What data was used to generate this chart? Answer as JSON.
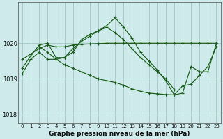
{
  "background_color": "#ceeaea",
  "grid_color": "#a8cccc",
  "line_color": "#1a5c1a",
  "xlabel": "Graphe pression niveau de la mer (hPa)",
  "xlim": [
    -0.5,
    23.5
  ],
  "ylim": [
    1017.75,
    1021.15
  ],
  "yticks": [
    1018,
    1019,
    1020
  ],
  "xticks": [
    0,
    1,
    2,
    3,
    4,
    5,
    6,
    7,
    8,
    9,
    10,
    11,
    12,
    13,
    14,
    15,
    16,
    17,
    18,
    19,
    20,
    21,
    22,
    23
  ],
  "lines": [
    {
      "x": [
        0,
        1,
        2,
        3,
        4,
        5,
        6,
        7,
        8,
        9,
        10,
        11,
        12,
        13,
        14,
        15,
        16,
        17,
        18,
        19,
        20,
        21,
        22,
        23
      ],
      "y": [
        1019.55,
        1019.7,
        1019.85,
        1019.95,
        1019.9,
        1019.9,
        1019.95,
        1019.97,
        1019.98,
        1019.99,
        1020.0,
        1020.0,
        1020.0,
        1020.0,
        1020.0,
        1020.0,
        1020.0,
        1020.0,
        1020.0,
        1020.0,
        1020.0,
        1020.0,
        1020.0,
        1020.0
      ]
    },
    {
      "x": [
        0,
        1,
        2,
        3,
        4,
        5,
        6,
        7,
        8,
        9,
        10,
        11,
        12,
        13,
        14,
        15,
        16,
        17,
        18,
        19,
        20,
        21,
        22,
        23
      ],
      "y": [
        1019.3,
        1019.65,
        1019.95,
        1020.0,
        1019.6,
        1019.6,
        1019.75,
        1020.1,
        1020.25,
        1020.35,
        1020.5,
        1020.72,
        1020.45,
        1020.15,
        1019.75,
        1019.5,
        1019.25,
        1018.95,
        1018.55,
        1018.6,
        1019.35,
        1019.2,
        1019.2,
        1020.0
      ]
    },
    {
      "x": [
        0,
        1,
        2,
        3,
        4,
        5,
        6,
        7,
        8,
        9,
        10,
        11,
        12,
        13,
        14,
        15,
        16,
        17,
        18
      ],
      "y": [
        1019.15,
        1019.55,
        1019.75,
        1019.55,
        1019.55,
        1019.6,
        1019.85,
        1020.05,
        1020.2,
        1020.35,
        1020.45,
        1020.3,
        1020.1,
        1019.85,
        1019.6,
        1019.4,
        1019.2,
        1019.0,
        1018.7
      ]
    },
    {
      "x": [
        2,
        3,
        4,
        5,
        6,
        7,
        8,
        9,
        10,
        11,
        12,
        13,
        14,
        15,
        16,
        17,
        18,
        19,
        20,
        21,
        22,
        23
      ],
      "y": [
        1019.9,
        1019.75,
        1019.55,
        1019.4,
        1019.3,
        1019.2,
        1019.1,
        1019.0,
        1018.95,
        1018.9,
        1018.82,
        1018.72,
        1018.65,
        1018.6,
        1018.58,
        1018.56,
        1018.55,
        1018.8,
        1018.85,
        1019.1,
        1019.35,
        1019.9
      ]
    }
  ]
}
